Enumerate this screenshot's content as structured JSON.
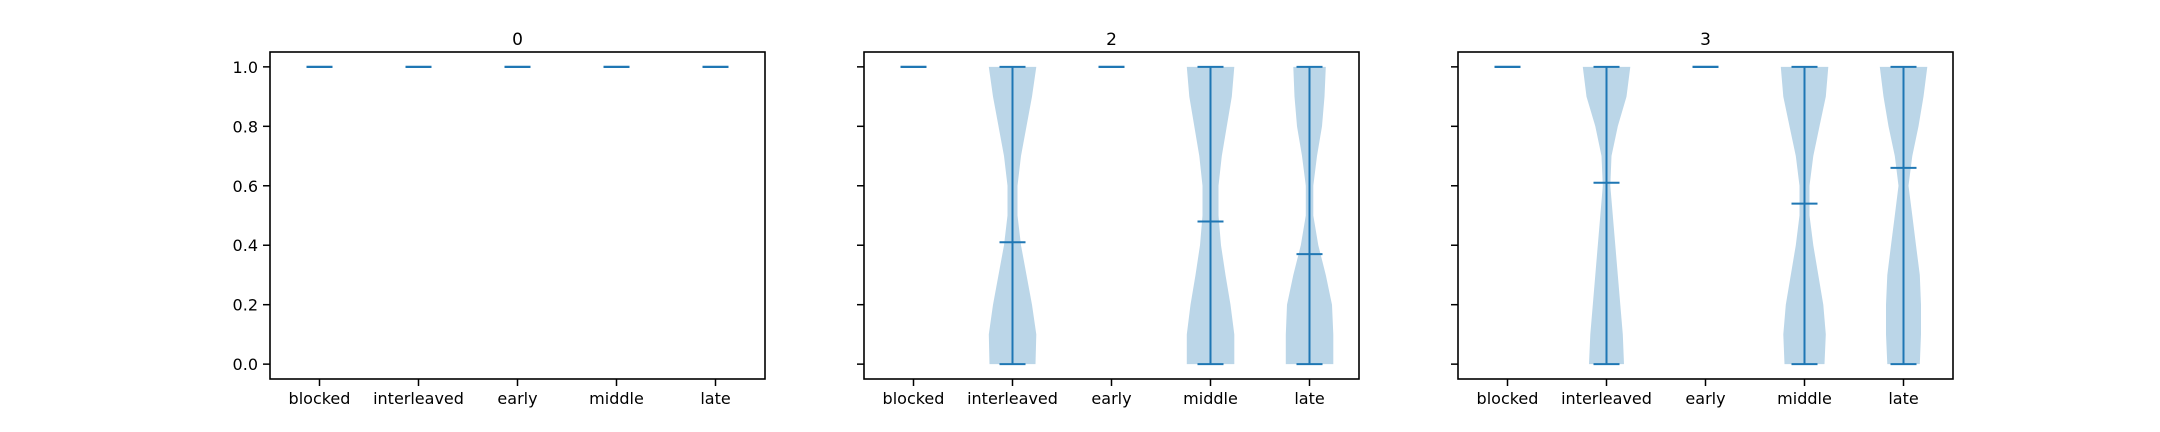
{
  "chart_data": [
    {
      "type": "violin",
      "title": "0",
      "categories": [
        "blocked",
        "interleaved",
        "early",
        "middle",
        "late"
      ],
      "yticks": [
        "0.0",
        "0.2",
        "0.4",
        "0.6",
        "0.8",
        "1.0"
      ],
      "ylim": [
        -0.05,
        1.05
      ],
      "show_y_tick_labels": true,
      "series": [
        {
          "category": "blocked",
          "min": 1.0,
          "max": 1.0,
          "mean": 1.0,
          "density": []
        },
        {
          "category": "interleaved",
          "min": 1.0,
          "max": 1.0,
          "mean": 1.0,
          "density": []
        },
        {
          "category": "early",
          "min": 1.0,
          "max": 1.0,
          "mean": 1.0,
          "density": []
        },
        {
          "category": "middle",
          "min": 1.0,
          "max": 1.0,
          "mean": 1.0,
          "density": []
        },
        {
          "category": "late",
          "min": 1.0,
          "max": 1.0,
          "mean": 1.0,
          "density": []
        }
      ]
    },
    {
      "type": "violin",
      "title": "2",
      "categories": [
        "blocked",
        "interleaved",
        "early",
        "middle",
        "late"
      ],
      "yticks": [
        "0.0",
        "0.2",
        "0.4",
        "0.6",
        "0.8",
        "1.0"
      ],
      "ylim": [
        -0.05,
        1.05
      ],
      "show_y_tick_labels": false,
      "series": [
        {
          "category": "blocked",
          "min": 1.0,
          "max": 1.0,
          "mean": 1.0,
          "density": []
        },
        {
          "category": "interleaved",
          "min": 0.0,
          "max": 1.0,
          "mean": 0.41,
          "density": [
            [
              0.0,
              0.92
            ],
            [
              0.1,
              0.95
            ],
            [
              0.2,
              0.78
            ],
            [
              0.3,
              0.56
            ],
            [
              0.4,
              0.34
            ],
            [
              0.5,
              0.2
            ],
            [
              0.6,
              0.2
            ],
            [
              0.7,
              0.34
            ],
            [
              0.8,
              0.56
            ],
            [
              0.9,
              0.78
            ],
            [
              1.0,
              0.95
            ]
          ]
        },
        {
          "category": "early",
          "min": 1.0,
          "max": 1.0,
          "mean": 1.0,
          "density": []
        },
        {
          "category": "middle",
          "min": 0.0,
          "max": 1.0,
          "mean": 0.48,
          "density": [
            [
              0.0,
              0.95
            ],
            [
              0.1,
              0.95
            ],
            [
              0.2,
              0.8
            ],
            [
              0.3,
              0.6
            ],
            [
              0.4,
              0.42
            ],
            [
              0.5,
              0.32
            ],
            [
              0.6,
              0.32
            ],
            [
              0.7,
              0.45
            ],
            [
              0.8,
              0.65
            ],
            [
              0.9,
              0.85
            ],
            [
              1.0,
              0.95
            ]
          ]
        },
        {
          "category": "late",
          "min": 0.0,
          "max": 1.0,
          "mean": 0.37,
          "density": [
            [
              0.0,
              0.95
            ],
            [
              0.1,
              0.95
            ],
            [
              0.2,
              0.9
            ],
            [
              0.3,
              0.65
            ],
            [
              0.4,
              0.35
            ],
            [
              0.5,
              0.15
            ],
            [
              0.6,
              0.15
            ],
            [
              0.7,
              0.3
            ],
            [
              0.8,
              0.5
            ],
            [
              0.9,
              0.6
            ],
            [
              1.0,
              0.65
            ]
          ]
        }
      ]
    },
    {
      "type": "violin",
      "title": "3",
      "categories": [
        "blocked",
        "interleaved",
        "early",
        "middle",
        "late"
      ],
      "yticks": [
        "0.0",
        "0.2",
        "0.4",
        "0.6",
        "0.8",
        "1.0"
      ],
      "ylim": [
        -0.05,
        1.05
      ],
      "show_y_tick_labels": false,
      "series": [
        {
          "category": "blocked",
          "min": 1.0,
          "max": 1.0,
          "mean": 1.0,
          "density": []
        },
        {
          "category": "interleaved",
          "min": 0.0,
          "max": 1.0,
          "mean": 0.61,
          "density": [
            [
              0.0,
              0.7
            ],
            [
              0.1,
              0.65
            ],
            [
              0.2,
              0.55
            ],
            [
              0.3,
              0.45
            ],
            [
              0.4,
              0.35
            ],
            [
              0.5,
              0.25
            ],
            [
              0.6,
              0.15
            ],
            [
              0.7,
              0.2
            ],
            [
              0.8,
              0.45
            ],
            [
              0.9,
              0.8
            ],
            [
              1.0,
              0.95
            ]
          ]
        },
        {
          "category": "early",
          "min": 1.0,
          "max": 1.0,
          "mean": 1.0,
          "density": []
        },
        {
          "category": "middle",
          "min": 0.0,
          "max": 1.0,
          "mean": 0.54,
          "density": [
            [
              0.0,
              0.8
            ],
            [
              0.1,
              0.85
            ],
            [
              0.2,
              0.75
            ],
            [
              0.3,
              0.55
            ],
            [
              0.4,
              0.35
            ],
            [
              0.5,
              0.2
            ],
            [
              0.6,
              0.2
            ],
            [
              0.7,
              0.35
            ],
            [
              0.8,
              0.6
            ],
            [
              0.9,
              0.85
            ],
            [
              1.0,
              0.95
            ]
          ]
        },
        {
          "category": "late",
          "min": 0.0,
          "max": 1.0,
          "mean": 0.66,
          "density": [
            [
              0.0,
              0.65
            ],
            [
              0.1,
              0.7
            ],
            [
              0.2,
              0.7
            ],
            [
              0.3,
              0.65
            ],
            [
              0.4,
              0.5
            ],
            [
              0.5,
              0.35
            ],
            [
              0.6,
              0.2
            ],
            [
              0.7,
              0.35
            ],
            [
              0.8,
              0.6
            ],
            [
              0.9,
              0.8
            ],
            [
              1.0,
              0.95
            ]
          ]
        }
      ]
    }
  ],
  "style": {
    "line_color": "#1f77b4",
    "fill_color": "#1f77b4",
    "fill_opacity": 0.3,
    "axis_color": "#000000"
  }
}
